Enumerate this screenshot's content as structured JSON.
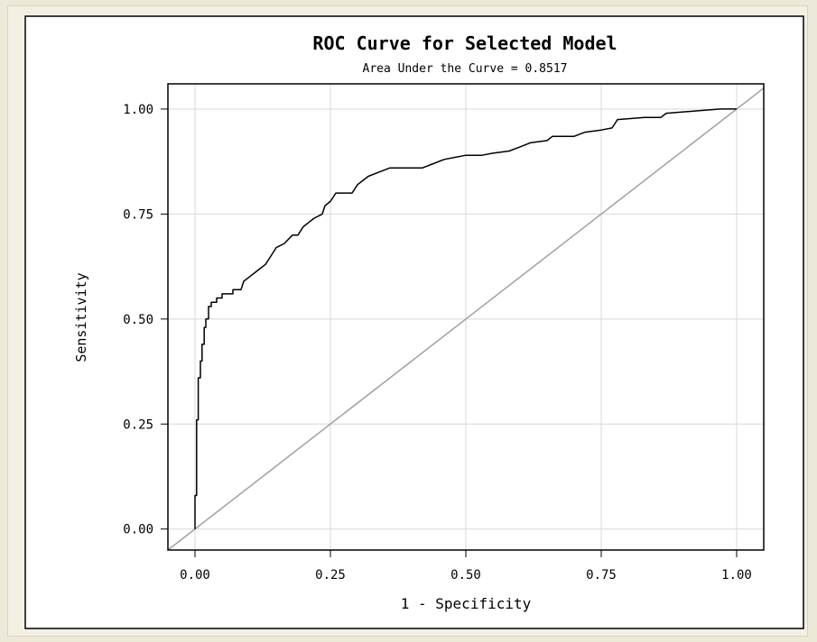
{
  "chart_data": {
    "type": "line",
    "title": "ROC Curve for Selected Model",
    "subtitle": "Area Under the Curve = 0.8517",
    "xlabel": "1 - Specificity",
    "ylabel": "Sensitivity",
    "xlim": [
      -0.05,
      1.05
    ],
    "ylim": [
      -0.05,
      1.06
    ],
    "x_ticks": [
      0,
      0.25,
      0.5,
      0.75,
      1
    ],
    "x_tick_labels": [
      "0.00",
      "0.25",
      "0.50",
      "0.75",
      "1.00"
    ],
    "y_ticks": [
      0,
      0.25,
      0.5,
      0.75,
      1
    ],
    "y_tick_labels": [
      "0.00",
      "0.25",
      "0.50",
      "0.75",
      "1.00"
    ],
    "grid": true,
    "colors": {
      "curve": "#000000",
      "reference": "#a0a0a0",
      "grid": "#d8d8d8",
      "frame": "#000000"
    },
    "series": [
      {
        "points": [
          [
            0,
            0
          ],
          [
            0,
            0.08
          ],
          [
            0.003,
            0.08
          ],
          [
            0.003,
            0.26
          ],
          [
            0.006,
            0.26
          ],
          [
            0.006,
            0.36
          ],
          [
            0.01,
            0.36
          ],
          [
            0.01,
            0.4
          ],
          [
            0.013,
            0.4
          ],
          [
            0.013,
            0.44
          ],
          [
            0.017,
            0.44
          ],
          [
            0.017,
            0.48
          ],
          [
            0.02,
            0.48
          ],
          [
            0.02,
            0.5
          ],
          [
            0.025,
            0.5
          ],
          [
            0.025,
            0.53
          ],
          [
            0.03,
            0.53
          ],
          [
            0.03,
            0.54
          ],
          [
            0.04,
            0.54
          ],
          [
            0.04,
            0.55
          ],
          [
            0.05,
            0.55
          ],
          [
            0.05,
            0.56
          ],
          [
            0.07,
            0.56
          ],
          [
            0.07,
            0.57
          ],
          [
            0.085,
            0.57
          ],
          [
            0.09,
            0.59
          ],
          [
            0.1,
            0.6
          ],
          [
            0.11,
            0.61
          ],
          [
            0.12,
            0.62
          ],
          [
            0.13,
            0.63
          ],
          [
            0.14,
            0.65
          ],
          [
            0.15,
            0.67
          ],
          [
            0.165,
            0.68
          ],
          [
            0.18,
            0.7
          ],
          [
            0.19,
            0.7
          ],
          [
            0.2,
            0.72
          ],
          [
            0.21,
            0.73
          ],
          [
            0.22,
            0.74
          ],
          [
            0.235,
            0.75
          ],
          [
            0.24,
            0.77
          ],
          [
            0.25,
            0.78
          ],
          [
            0.26,
            0.8
          ],
          [
            0.29,
            0.8
          ],
          [
            0.3,
            0.82
          ],
          [
            0.31,
            0.83
          ],
          [
            0.32,
            0.84
          ],
          [
            0.34,
            0.85
          ],
          [
            0.36,
            0.86
          ],
          [
            0.4,
            0.86
          ],
          [
            0.42,
            0.86
          ],
          [
            0.44,
            0.87
          ],
          [
            0.46,
            0.88
          ],
          [
            0.48,
            0.885
          ],
          [
            0.5,
            0.89
          ],
          [
            0.53,
            0.89
          ],
          [
            0.55,
            0.895
          ],
          [
            0.58,
            0.9
          ],
          [
            0.6,
            0.91
          ],
          [
            0.62,
            0.92
          ],
          [
            0.65,
            0.925
          ],
          [
            0.66,
            0.935
          ],
          [
            0.7,
            0.935
          ],
          [
            0.72,
            0.945
          ],
          [
            0.75,
            0.95
          ],
          [
            0.77,
            0.955
          ],
          [
            0.78,
            0.975
          ],
          [
            0.83,
            0.98
          ],
          [
            0.86,
            0.98
          ],
          [
            0.87,
            0.99
          ],
          [
            0.92,
            0.995
          ],
          [
            0.97,
            1.0
          ],
          [
            1.0,
            1.0
          ]
        ]
      },
      {
        "points": [
          [
            -0.05,
            -0.05
          ],
          [
            1.05,
            1.05
          ]
        ]
      }
    ]
  }
}
